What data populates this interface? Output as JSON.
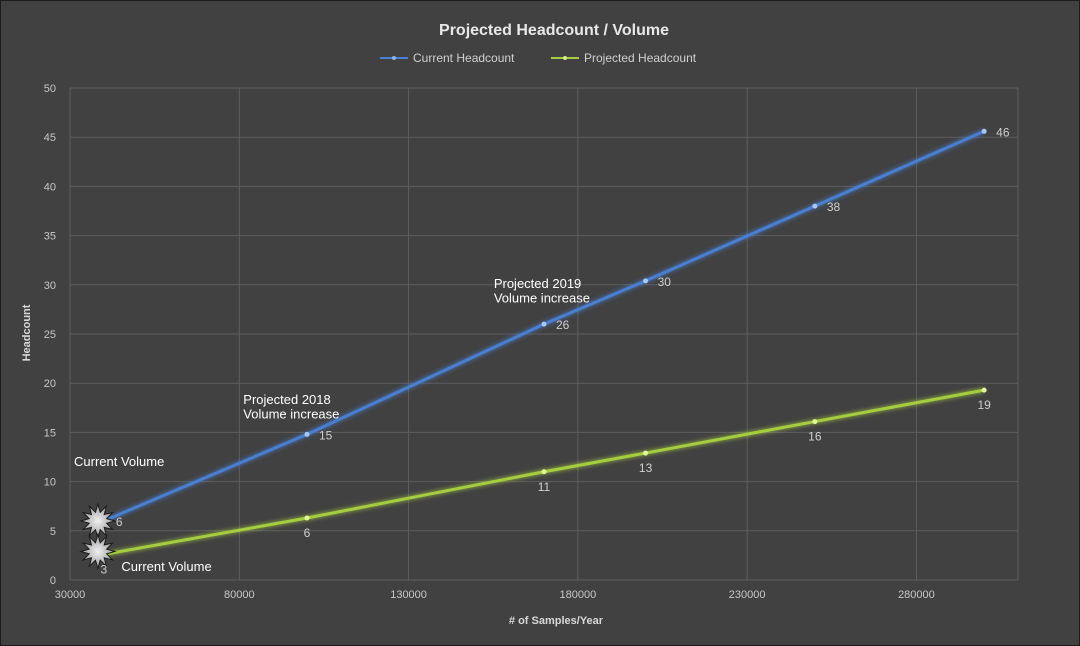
{
  "chart_data": {
    "type": "line",
    "title": "Projected Headcount / Volume",
    "xlabel": "# of Samples/Year",
    "ylabel": "Headcount",
    "xlim": [
      30000,
      310000
    ],
    "ylim": [
      0,
      50
    ],
    "x_ticks": [
      "30000",
      "80000",
      "130000",
      "180000",
      "230000",
      "280000"
    ],
    "y_ticks": [
      "0",
      "5",
      "10",
      "15",
      "20",
      "25",
      "30",
      "35",
      "40",
      "45",
      "50"
    ],
    "grid": true,
    "legend_position": "top",
    "series": [
      {
        "name": "Current Headcount",
        "color": "#4a7fd1",
        "points": [
          {
            "x": 40000,
            "y": 6,
            "label": "6"
          },
          {
            "x": 100000,
            "y": 14.8,
            "label": "15"
          },
          {
            "x": 170000,
            "y": 26,
            "label": "26"
          },
          {
            "x": 200000,
            "y": 30.4,
            "label": "30"
          },
          {
            "x": 250000,
            "y": 38,
            "label": "38"
          },
          {
            "x": 300000,
            "y": 45.6,
            "label": "46"
          }
        ]
      },
      {
        "name": "Projected Headcount",
        "color": "#a6cc3f",
        "points": [
          {
            "x": 40000,
            "y": 2.6,
            "label": "3"
          },
          {
            "x": 100000,
            "y": 6.3,
            "label": "6"
          },
          {
            "x": 170000,
            "y": 11,
            "label": "11"
          },
          {
            "x": 200000,
            "y": 12.9,
            "label": "13"
          },
          {
            "x": 250000,
            "y": 16.1,
            "label": "16"
          },
          {
            "x": 300000,
            "y": 19.3,
            "label": "19"
          }
        ]
      }
    ],
    "annotations": [
      {
        "text": "Current Volume",
        "x": 30000,
        "y": 12,
        "anchor": "start"
      },
      {
        "text": "Projected 2018",
        "x": 80000,
        "y": 18.3,
        "anchor": "start"
      },
      {
        "text": "Volume increase",
        "x": 80000,
        "y": 16.8,
        "anchor": "start"
      },
      {
        "text": "Projected 2019",
        "x": 154000,
        "y": 30.1,
        "anchor": "start"
      },
      {
        "text": "Volume increase",
        "x": 154000,
        "y": 28.6,
        "anchor": "start"
      },
      {
        "text": "Current Volume",
        "x": 44000,
        "y": 1.3,
        "anchor": "start"
      }
    ],
    "markers": [
      {
        "x": 40000,
        "y": 6
      },
      {
        "x": 40000,
        "y": 2.9
      }
    ]
  }
}
